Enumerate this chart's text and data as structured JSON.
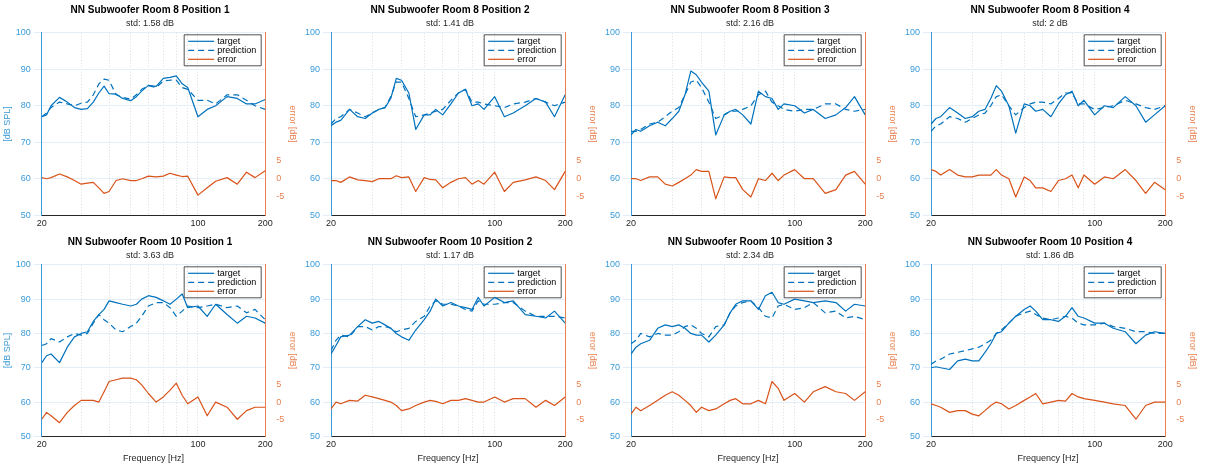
{
  "chart_data": [
    {
      "type": "line",
      "title": "NN Subwoofer Room 8 Position 1",
      "subtitle": "std: 1.58 dB",
      "ylabel": "[dB SPL]",
      "y2label": "error [dB]",
      "x": [
        20,
        21,
        22,
        24,
        26,
        28,
        30,
        32,
        34,
        36,
        38,
        40,
        43,
        46,
        50,
        53,
        56,
        60,
        65,
        70,
        75,
        80,
        85,
        90,
        100,
        110,
        120,
        135,
        150,
        165,
        180,
        200
      ],
      "log": "x",
      "xlim": [
        20,
        200
      ],
      "xticks": [
        20,
        {
          "value": 30,
          "label": null
        },
        {
          "value": 40,
          "label": null
        },
        {
          "value": 50,
          "label": null
        },
        {
          "value": 60,
          "label": null
        },
        {
          "value": 70,
          "label": null
        },
        {
          "value": 80,
          "label": null
        },
        {
          "value": 90,
          "label": null
        },
        100,
        200
      ],
      "ylim": [
        50,
        100
      ],
      "yticks": [
        50,
        60,
        70,
        80,
        90,
        100
      ],
      "y2lim": [
        -10,
        40
      ],
      "y2ticks": [
        -5,
        0,
        5
      ],
      "grid": true,
      "legend": "top right",
      "series": [
        {
          "name": "target",
          "color": "#0072bd",
          "line_style": "solid",
          "values": [
            77,
            77.5,
            80,
            82.3,
            81,
            79.5,
            79,
            79.2,
            81,
            83.5,
            85.4,
            83.3,
            83.2,
            82,
            81.4,
            82.5,
            84,
            85.6,
            85.3,
            87.5,
            87.8,
            88.2,
            86,
            85,
            77,
            79,
            80,
            82.5,
            82,
            80.5,
            80.5,
            81.7
          ]
        },
        {
          "name": "prediction",
          "color": "#0072bd",
          "line_style": "dashed",
          "values": [
            77,
            78,
            79.5,
            81,
            80.5,
            80,
            80.7,
            81,
            83,
            86,
            87.3,
            87,
            83,
            82.3,
            81.8,
            83,
            84.5,
            85.5,
            85,
            86.8,
            87,
            87,
            85,
            84.5,
            81.5,
            81.5,
            80.5,
            83,
            83,
            81.5,
            80,
            79
          ]
        },
        {
          "name": "error",
          "color": "#d95319",
          "line_style": "solid",
          "axis": "y2",
          "values": [
            0.3,
            0,
            0.3,
            1.3,
            0.5,
            -0.5,
            -1.5,
            -1.2,
            -1,
            -2.5,
            -4,
            -3.5,
            -0.5,
            0,
            -0.5,
            -0.5,
            0,
            0.7,
            0.5,
            0.7,
            1.5,
            1,
            0.6,
            0.7,
            -4.5,
            -2.5,
            -0.7,
            0.3,
            -1.5,
            1.8,
            0.3,
            2.2
          ]
        }
      ]
    },
    {
      "type": "line",
      "title": "NN Subwoofer Room 8 Position 2",
      "subtitle": "std: 1.41 dB",
      "y2label": "error [dB]",
      "x": [
        20,
        21,
        22,
        24,
        26,
        28,
        30,
        32,
        34,
        36,
        38,
        40,
        43,
        46,
        50,
        53,
        56,
        60,
        65,
        70,
        75,
        80,
        85,
        90,
        100,
        110,
        120,
        135,
        150,
        165,
        180,
        200
      ],
      "log": "x",
      "xlim": [
        20,
        200
      ],
      "xticks": [
        20,
        {
          "value": 30,
          "label": null
        },
        {
          "value": 40,
          "label": null
        },
        {
          "value": 50,
          "label": null
        },
        {
          "value": 60,
          "label": null
        },
        {
          "value": 70,
          "label": null
        },
        {
          "value": 80,
          "label": null
        },
        {
          "value": 90,
          "label": null
        },
        100,
        200
      ],
      "ylim": [
        50,
        100
      ],
      "yticks": [
        50,
        60,
        70,
        80,
        90,
        100
      ],
      "y2lim": [
        -10,
        40
      ],
      "y2ticks": [
        -5,
        0,
        5
      ],
      "grid": true,
      "legend": "top right",
      "series": [
        {
          "name": "target",
          "color": "#0072bd",
          "line_style": "solid",
          "values": [
            74.5,
            75.5,
            76,
            79,
            77,
            76.5,
            78,
            79,
            79.5,
            82,
            87.5,
            87,
            83.5,
            73.5,
            77.5,
            77.5,
            79,
            77.5,
            80.5,
            83.5,
            84.5,
            80,
            80.5,
            79,
            82.5,
            77,
            78,
            80,
            82,
            81,
            77,
            83
          ]
        },
        {
          "name": "prediction",
          "color": "#0072bd",
          "line_style": "dashed",
          "values": [
            75,
            76.5,
            77,
            79,
            78,
            77,
            78,
            79,
            79.5,
            82.5,
            86.5,
            86.5,
            82,
            77,
            77.5,
            78,
            78.5,
            79,
            81.5,
            83.5,
            84.5,
            81,
            81,
            80.5,
            80,
            79.5,
            80.5,
            81,
            82,
            81,
            80,
            81
          ]
        },
        {
          "name": "error",
          "color": "#d95319",
          "line_style": "solid",
          "axis": "y2",
          "values": [
            -0.5,
            -0.5,
            -1,
            0.5,
            -0.3,
            -0.5,
            -0.8,
            0,
            0,
            0,
            0.8,
            0.3,
            0.5,
            -3.5,
            0.3,
            -0.2,
            -0.3,
            -2.5,
            -1,
            0,
            0.3,
            -1.5,
            -0.5,
            -1.5,
            1.8,
            -3.5,
            -1,
            -0.3,
            0.5,
            -0.5,
            -3,
            2
          ]
        }
      ]
    },
    {
      "type": "line",
      "title": "NN Subwoofer Room 8 Position 3",
      "subtitle": "std: 2.16 dB",
      "y2label": "error [dB]",
      "x": [
        20,
        21,
        22,
        24,
        26,
        28,
        30,
        32,
        34,
        36,
        38,
        40,
        43,
        46,
        50,
        53,
        56,
        60,
        65,
        70,
        75,
        80,
        85,
        90,
        100,
        110,
        120,
        135,
        150,
        165,
        180,
        200
      ],
      "log": "x",
      "xlim": [
        20,
        200
      ],
      "xticks": [
        20,
        {
          "value": 30,
          "label": null
        },
        {
          "value": 40,
          "label": null
        },
        {
          "value": 50,
          "label": null
        },
        {
          "value": 60,
          "label": null
        },
        {
          "value": 70,
          "label": null
        },
        {
          "value": 80,
          "label": null
        },
        {
          "value": 90,
          "label": null
        },
        100,
        200
      ],
      "ylim": [
        50,
        100
      ],
      "yticks": [
        50,
        60,
        70,
        80,
        90,
        100
      ],
      "y2lim": [
        -10,
        40
      ],
      "y2ticks": [
        -5,
        0,
        5
      ],
      "grid": true,
      "legend": "top right",
      "series": [
        {
          "name": "target",
          "color": "#0072bd",
          "line_style": "solid",
          "values": [
            72,
            73.5,
            73,
            74.5,
            75.5,
            74.5,
            76.5,
            78.5,
            83,
            89.5,
            88.5,
            86.5,
            84,
            72,
            77.5,
            78.5,
            79,
            77.5,
            75,
            84,
            82.5,
            82,
            79,
            80.5,
            80,
            78,
            79,
            76.5,
            77.5,
            79.5,
            82.5,
            77.5
          ]
        },
        {
          "name": "prediction",
          "color": "#0072bd",
          "line_style": "dashed",
          "values": [
            73,
            73,
            73.5,
            75,
            75.5,
            77,
            78.5,
            79.5,
            83,
            86.5,
            87,
            85,
            81,
            76.5,
            77.5,
            78.5,
            78.5,
            79,
            80,
            83,
            84,
            81,
            80,
            79,
            78.5,
            79,
            79,
            80.5,
            80.5,
            79,
            78.5,
            79
          ]
        },
        {
          "name": "error",
          "color": "#d95319",
          "line_style": "solid",
          "axis": "y2",
          "values": [
            0,
            0,
            -0.5,
            0.5,
            0.5,
            -1.5,
            -2,
            -1,
            0,
            1,
            2.5,
            2,
            2,
            -5.5,
            0.5,
            0.3,
            0.3,
            -3,
            -5,
            0,
            -0.5,
            1.5,
            -0.5,
            1,
            2.5,
            0,
            0,
            -4,
            -3,
            1,
            2,
            -1.5
          ]
        }
      ]
    },
    {
      "type": "line",
      "title": "NN Subwoofer Room 8 Position 4",
      "subtitle": "std: 2 dB",
      "y2label": "error [dB]",
      "x": [
        20,
        21,
        22,
        24,
        26,
        28,
        30,
        32,
        34,
        36,
        38,
        40,
        43,
        46,
        50,
        53,
        56,
        60,
        65,
        70,
        75,
        80,
        85,
        90,
        100,
        110,
        120,
        135,
        150,
        165,
        180,
        200
      ],
      "log": "x",
      "xlim": [
        20,
        200
      ],
      "xticks": [
        20,
        {
          "value": 30,
          "label": null
        },
        {
          "value": 40,
          "label": null
        },
        {
          "value": 50,
          "label": null
        },
        {
          "value": 60,
          "label": null
        },
        {
          "value": 70,
          "label": null
        },
        {
          "value": 80,
          "label": null
        },
        {
          "value": 90,
          "label": null
        },
        100,
        200
      ],
      "ylim": [
        50,
        100
      ],
      "yticks": [
        50,
        60,
        70,
        80,
        90,
        100
      ],
      "y2lim": [
        -10,
        40
      ],
      "y2ticks": [
        -5,
        0,
        5
      ],
      "grid": true,
      "legend": "top right",
      "series": [
        {
          "name": "target",
          "color": "#0072bd",
          "line_style": "solid",
          "values": [
            75,
            76.5,
            77,
            79.5,
            78,
            76.5,
            77,
            78.5,
            79,
            82,
            85.5,
            84,
            80,
            72.5,
            80.5,
            80,
            78.5,
            79,
            77,
            80.5,
            83,
            84,
            80,
            81.5,
            77.5,
            80,
            79.5,
            82.5,
            80,
            75.5,
            77.5,
            80
          ]
        },
        {
          "name": "prediction",
          "color": "#0072bd",
          "line_style": "dashed",
          "values": [
            73,
            74.5,
            75,
            77,
            76.5,
            75.5,
            76.5,
            77.5,
            78,
            80,
            82.5,
            83,
            80,
            77.5,
            79.5,
            80.5,
            81,
            81,
            80.5,
            82,
            83.5,
            83.5,
            80.5,
            80.5,
            79,
            79.5,
            80,
            81.5,
            80.5,
            79.5,
            79,
            80
          ]
        },
        {
          "name": "error",
          "color": "#d95319",
          "line_style": "solid",
          "axis": "y2",
          "values": [
            2.5,
            2,
            1,
            2.5,
            1,
            0.5,
            0.5,
            1,
            1,
            1,
            2.5,
            1,
            0,
            -5,
            0.5,
            -0.5,
            -2.5,
            -2.5,
            -3.5,
            -0.5,
            0,
            1,
            -2.5,
            1,
            -1.5,
            0.5,
            0,
            2.5,
            -0.5,
            -4,
            -1,
            -3
          ]
        }
      ]
    },
    {
      "type": "line",
      "title": "NN Subwoofer Room 10 Position 1",
      "subtitle": "std: 3.63 dB",
      "xlabel": "Frequency [Hz]",
      "ylabel": "[dB SPL]",
      "y2label": "error [dB]",
      "x": [
        20,
        21,
        22,
        24,
        26,
        28,
        30,
        32,
        34,
        36,
        38,
        40,
        43,
        46,
        50,
        53,
        56,
        60,
        65,
        70,
        75,
        80,
        85,
        90,
        100,
        110,
        120,
        135,
        150,
        165,
        180,
        200
      ],
      "log": "x",
      "xlim": [
        20,
        200
      ],
      "xticks": [
        20,
        {
          "value": 30,
          "label": null
        },
        {
          "value": 40,
          "label": null
        },
        {
          "value": 50,
          "label": null
        },
        {
          "value": 60,
          "label": null
        },
        {
          "value": 70,
          "label": null
        },
        {
          "value": 80,
          "label": null
        },
        {
          "value": 90,
          "label": null
        },
        100,
        200
      ],
      "ylim": [
        50,
        100
      ],
      "yticks": [
        50,
        60,
        70,
        80,
        90,
        100
      ],
      "y2lim": [
        -10,
        40
      ],
      "y2ticks": [
        -5,
        0,
        5
      ],
      "grid": true,
      "legend": "top right",
      "series": [
        {
          "name": "target",
          "color": "#0072bd",
          "line_style": "solid",
          "values": [
            71.5,
            73.5,
            74,
            71.5,
            76,
            79,
            80,
            80.5,
            83.5,
            85.5,
            87,
            89.5,
            89,
            88.5,
            88,
            88.5,
            90,
            91,
            90.5,
            89.5,
            88.5,
            90,
            91.5,
            87.5,
            88,
            85,
            88.5,
            85.5,
            83,
            85,
            84.5,
            83
          ]
        },
        {
          "name": "prediction",
          "color": "#0072bd",
          "line_style": "dashed",
          "values": [
            76.5,
            77,
            78.5,
            77.5,
            79,
            80,
            79.5,
            80,
            83,
            85.5,
            84,
            83,
            81,
            80.5,
            82,
            83,
            85,
            88,
            89,
            89,
            87.5,
            85,
            86.5,
            88,
            87.5,
            88,
            88.5,
            87.5,
            88,
            86,
            87,
            84
          ]
        },
        {
          "name": "error",
          "color": "#d95319",
          "line_style": "solid",
          "axis": "y2",
          "values": [
            -5,
            -3,
            -4,
            -6,
            -3,
            -1,
            0.5,
            0.5,
            0.5,
            0,
            3,
            6,
            6.5,
            7,
            7,
            6.5,
            5,
            2.5,
            0,
            1.5,
            3.5,
            5.5,
            2,
            -0.5,
            1.5,
            -4,
            0,
            -1.5,
            -5,
            -2.5,
            -1.5,
            -1.5
          ]
        }
      ]
    },
    {
      "type": "line",
      "title": "NN Subwoofer Room 10 Position 2",
      "subtitle": "std: 1.17 dB",
      "xlabel": "Frequency [Hz]",
      "y2label": "error [dB]",
      "x": [
        20,
        21,
        22,
        24,
        26,
        28,
        30,
        32,
        34,
        36,
        38,
        40,
        43,
        46,
        50,
        53,
        56,
        60,
        65,
        70,
        75,
        80,
        85,
        90,
        100,
        110,
        120,
        135,
        150,
        165,
        180,
        200
      ],
      "log": "x",
      "xlim": [
        20,
        200
      ],
      "xticks": [
        20,
        {
          "value": 30,
          "label": null
        },
        {
          "value": 40,
          "label": null
        },
        {
          "value": 50,
          "label": null
        },
        {
          "value": 60,
          "label": null
        },
        {
          "value": 70,
          "label": null
        },
        {
          "value": 80,
          "label": null
        },
        {
          "value": 90,
          "label": null
        },
        100,
        200
      ],
      "ylim": [
        50,
        100
      ],
      "yticks": [
        50,
        60,
        70,
        80,
        90,
        100
      ],
      "y2lim": [
        -10,
        40
      ],
      "y2ticks": [
        -5,
        0,
        5
      ],
      "grid": true,
      "legend": "top right",
      "series": [
        {
          "name": "target",
          "color": "#0072bd",
          "line_style": "solid",
          "values": [
            74,
            76.5,
            79,
            79.5,
            82,
            84,
            83,
            83.5,
            82.5,
            81.5,
            80,
            79,
            78,
            81,
            84,
            86.5,
            90,
            88,
            89,
            88,
            87.5,
            87,
            90.5,
            88,
            90.5,
            89,
            89.5,
            85.5,
            85,
            84.5,
            86.5,
            83
          ]
        },
        {
          "name": "prediction",
          "color": "#0072bd",
          "line_style": "dashed",
          "values": [
            75,
            78,
            79.5,
            79,
            82,
            82,
            81,
            82,
            82,
            81.5,
            80.5,
            81,
            81.5,
            83.5,
            85,
            88,
            89.5,
            88.5,
            88.5,
            88,
            87,
            86.5,
            89.5,
            88.5,
            88.5,
            89,
            89,
            86.5,
            85,
            85,
            85,
            84.5
          ]
        },
        {
          "name": "error",
          "color": "#d95319",
          "line_style": "solid",
          "axis": "y2",
          "values": [
            -2,
            0,
            -0.5,
            0.5,
            0.3,
            2,
            1.5,
            1,
            0.5,
            0,
            -1,
            -2.5,
            -2,
            -1,
            0,
            0.5,
            0.2,
            -0.5,
            0.5,
            0.5,
            1,
            0.5,
            0,
            0,
            1.5,
            0,
            1,
            1,
            -1.5,
            0.5,
            -1,
            1.5
          ]
        }
      ]
    },
    {
      "type": "line",
      "title": "NN Subwoofer Room 10 Position 3",
      "subtitle": "std: 2.34 dB",
      "xlabel": "Frequency [Hz]",
      "y2label": "error [dB]",
      "x": [
        20,
        21,
        22,
        24,
        26,
        28,
        30,
        32,
        34,
        36,
        38,
        40,
        43,
        46,
        50,
        53,
        56,
        60,
        65,
        70,
        75,
        80,
        85,
        90,
        100,
        110,
        120,
        135,
        150,
        165,
        180,
        200
      ],
      "log": "x",
      "xlim": [
        20,
        200
      ],
      "xticks": [
        20,
        {
          "value": 30,
          "label": null
        },
        {
          "value": 40,
          "label": null
        },
        {
          "value": 50,
          "label": null
        },
        {
          "value": 60,
          "label": null
        },
        {
          "value": 70,
          "label": null
        },
        {
          "value": 80,
          "label": null
        },
        {
          "value": 90,
          "label": null
        },
        100,
        200
      ],
      "ylim": [
        50,
        100
      ],
      "yticks": [
        50,
        60,
        70,
        80,
        90,
        100
      ],
      "y2lim": [
        -10,
        40
      ],
      "y2ticks": [
        -5,
        0,
        5
      ],
      "grid": true,
      "legend": "top right",
      "series": [
        {
          "name": "target",
          "color": "#0072bd",
          "line_style": "solid",
          "values": [
            74,
            76,
            77,
            78,
            81.5,
            82.5,
            82,
            82.5,
            81.5,
            80,
            79.5,
            79.5,
            77.5,
            79.5,
            82.5,
            86,
            88.5,
            89.5,
            89.5,
            87,
            91,
            92,
            89,
            88.5,
            90,
            89.5,
            89,
            89.5,
            89,
            86.5,
            88.5,
            88
          ]
        },
        {
          "name": "prediction",
          "color": "#0072bd",
          "line_style": "dashed",
          "values": [
            77,
            78,
            80,
            79,
            80,
            79.5,
            79.5,
            80.5,
            82,
            82.5,
            81.5,
            80,
            79,
            82,
            82.5,
            86,
            88,
            89,
            89.5,
            87.5,
            85,
            84.5,
            88,
            88.5,
            87,
            87.5,
            89,
            86,
            86.5,
            84.5,
            85,
            84
          ]
        },
        {
          "name": "error",
          "color": "#d95319",
          "line_style": "solid",
          "axis": "y2",
          "values": [
            -3.5,
            -1.5,
            -2.5,
            -1,
            0.5,
            2,
            3,
            2,
            0.5,
            -1,
            -3,
            -1.5,
            -2.5,
            -2,
            -0.5,
            0.5,
            1,
            -0.5,
            -0.5,
            0.5,
            -0.5,
            6,
            4,
            0.5,
            2.5,
            0,
            3,
            4.5,
            3,
            2.5,
            0.5,
            3
          ]
        }
      ]
    },
    {
      "type": "line",
      "title": "NN Subwoofer Room 10 Position 4",
      "subtitle": "std: 1.86 dB",
      "xlabel": "Frequency [Hz]",
      "y2label": "error [dB]",
      "x": [
        20,
        21,
        22,
        24,
        26,
        28,
        30,
        32,
        34,
        36,
        38,
        40,
        43,
        46,
        50,
        53,
        56,
        60,
        65,
        70,
        75,
        80,
        85,
        90,
        100,
        110,
        120,
        135,
        150,
        165,
        180,
        200
      ],
      "log": "x",
      "xlim": [
        20,
        200
      ],
      "xticks": [
        20,
        {
          "value": 30,
          "label": null
        },
        {
          "value": 40,
          "label": null
        },
        {
          "value": 50,
          "label": null
        },
        {
          "value": 60,
          "label": null
        },
        {
          "value": 70,
          "label": null
        },
        {
          "value": 80,
          "label": null
        },
        {
          "value": 90,
          "label": null
        },
        100,
        200
      ],
      "ylim": [
        50,
        100
      ],
      "yticks": [
        50,
        60,
        70,
        80,
        90,
        100
      ],
      "y2lim": [
        -10,
        40
      ],
      "y2ticks": [
        -5,
        0,
        5
      ],
      "grid": true,
      "legend": "top right",
      "series": [
        {
          "name": "target",
          "color": "#0072bd",
          "line_style": "solid",
          "values": [
            70,
            70.3,
            70,
            69.5,
            72,
            72.5,
            72,
            72,
            74.5,
            77,
            80,
            80.5,
            83,
            85,
            87,
            88,
            86.5,
            84,
            84,
            83.5,
            85,
            87.5,
            85,
            84.5,
            83,
            83,
            81.5,
            80.5,
            77,
            79.5,
            80.5,
            80
          ]
        },
        {
          "name": "prediction",
          "color": "#0072bd",
          "line_style": "dashed",
          "values": [
            71,
            72,
            72.5,
            74,
            74.5,
            75,
            75.5,
            76,
            77,
            78,
            80,
            81,
            83,
            85,
            86,
            86.5,
            85.5,
            84.5,
            84,
            84.5,
            85,
            84.5,
            83,
            82.5,
            82.5,
            83,
            82,
            81.5,
            80.5,
            80.5,
            80,
            80
          ]
        },
        {
          "name": "error",
          "color": "#d95319",
          "line_style": "solid",
          "axis": "y2",
          "values": [
            -0.5,
            -1,
            -1.5,
            -3,
            -2.5,
            -2.5,
            -3.5,
            -4,
            -2.5,
            -1,
            0,
            -0.5,
            -2,
            -1,
            0.5,
            1.5,
            2.5,
            -0.5,
            0,
            0.5,
            0.3,
            2.5,
            1.5,
            1,
            0.5,
            0,
            -0.5,
            -1,
            -5,
            -1,
            0,
            0
          ]
        }
      ]
    }
  ]
}
